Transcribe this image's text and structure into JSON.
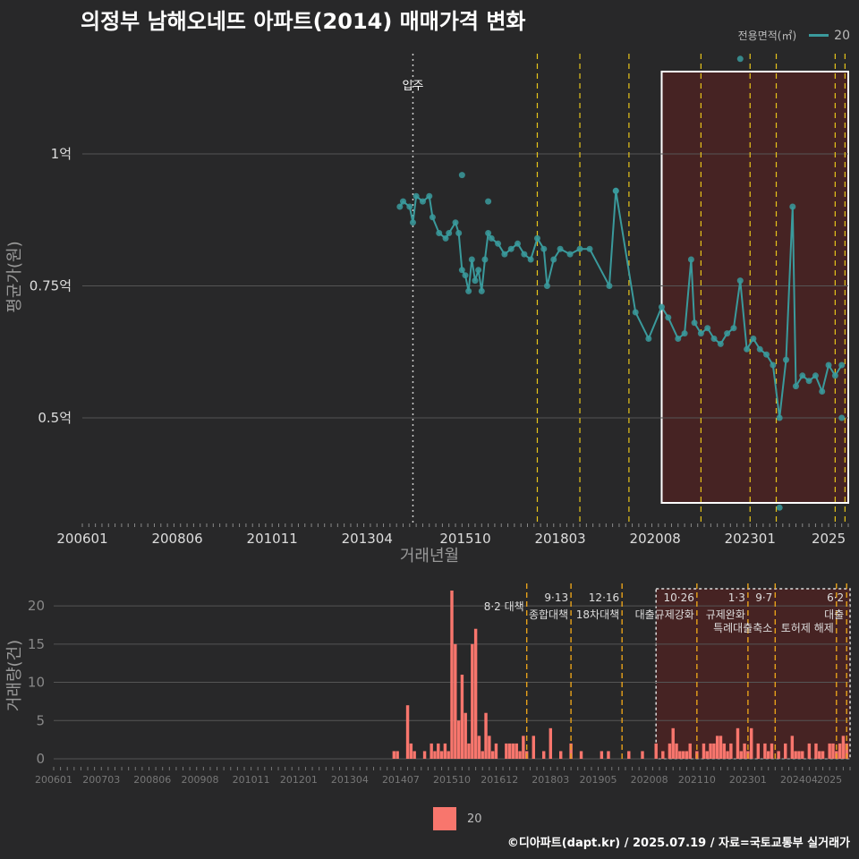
{
  "title": "의정부 남해오네뜨 아파트(2014) 매매가격 변화",
  "legend": {
    "title": "전용면적(㎡)",
    "series_label": "20",
    "bar_label": "20"
  },
  "footer": "©디아파트(dapt.kr) / 2025.07.19 / 자료=국토교통부 실거래가",
  "colors": {
    "bg": "#282829",
    "line": "#3a9a9c",
    "bar": "#f8766d",
    "grid": "#555555",
    "policy": "#e8c51a",
    "highlight": "#5a2020"
  },
  "chart_data": [
    {
      "type": "line+scatter",
      "title": "평균가(원)",
      "xlabel": "거래년월",
      "ylabel": "평균가(원)",
      "x_ticks": [
        "200601",
        "200806",
        "201011",
        "201304",
        "201510",
        "201803",
        "202008",
        "202301",
        "2025"
      ],
      "y_ticks": [
        {
          "value": 0.5,
          "label": "0.5억"
        },
        {
          "value": 0.75,
          "label": "0.75억"
        },
        {
          "value": 1.0,
          "label": "1억"
        }
      ],
      "ylim": [
        0.3,
        1.2
      ],
      "annotation": {
        "label": "입주",
        "date": "2014-06"
      },
      "policy_lines": [
        "2017-08",
        "2018-09",
        "2019-12",
        "2021-10",
        "2023-01",
        "2023-09",
        "2025-03",
        "2025-06"
      ],
      "highlight_range": [
        "2020-10",
        "2025-07"
      ],
      "series": [
        {
          "name": "20",
          "points": [
            [
              "2014-02",
              0.9
            ],
            [
              "2014-03",
              0.91
            ],
            [
              "2014-05",
              0.9
            ],
            [
              "2014-06",
              0.87
            ],
            [
              "2014-07",
              0.92
            ],
            [
              "2014-09",
              0.91
            ],
            [
              "2014-11",
              0.92
            ],
            [
              "2014-12",
              0.88
            ],
            [
              "2015-02",
              0.85
            ],
            [
              "2015-04",
              0.84
            ],
            [
              "2015-05",
              0.85
            ],
            [
              "2015-07",
              0.87
            ],
            [
              "2015-08",
              0.85
            ],
            [
              "2015-09",
              0.78
            ],
            [
              "2015-10",
              0.77
            ],
            [
              "2015-11",
              0.74
            ],
            [
              "2015-12",
              0.8
            ],
            [
              "2016-01",
              0.76
            ],
            [
              "2016-02",
              0.78
            ],
            [
              "2016-03",
              0.74
            ],
            [
              "2016-04",
              0.8
            ],
            [
              "2016-05",
              0.85
            ],
            [
              "2016-06",
              0.84
            ],
            [
              "2016-08",
              0.83
            ],
            [
              "2016-10",
              0.81
            ],
            [
              "2016-12",
              0.82
            ],
            [
              "2017-02",
              0.83
            ],
            [
              "2017-04",
              0.81
            ],
            [
              "2017-06",
              0.8
            ],
            [
              "2017-08",
              0.84
            ],
            [
              "2017-10",
              0.82
            ],
            [
              "2017-11",
              0.75
            ],
            [
              "2018-01",
              0.8
            ],
            [
              "2018-03",
              0.82
            ],
            [
              "2018-06",
              0.81
            ],
            [
              "2018-09",
              0.82
            ],
            [
              "2018-12",
              0.82
            ],
            [
              "2019-06",
              0.75
            ],
            [
              "2019-08",
              0.93
            ],
            [
              "2020-02",
              0.7
            ],
            [
              "2020-06",
              0.65
            ],
            [
              "2020-10",
              0.71
            ],
            [
              "2020-12",
              0.69
            ],
            [
              "2021-03",
              0.65
            ],
            [
              "2021-05",
              0.66
            ],
            [
              "2021-07",
              0.8
            ],
            [
              "2021-08",
              0.68
            ],
            [
              "2021-10",
              0.66
            ],
            [
              "2021-12",
              0.67
            ],
            [
              "2022-02",
              0.65
            ],
            [
              "2022-04",
              0.64
            ],
            [
              "2022-06",
              0.66
            ],
            [
              "2022-08",
              0.67
            ],
            [
              "2022-10",
              0.76
            ],
            [
              "2022-12",
              0.63
            ],
            [
              "2023-02",
              0.65
            ],
            [
              "2023-04",
              0.63
            ],
            [
              "2023-06",
              0.62
            ],
            [
              "2023-08",
              0.6
            ],
            [
              "2023-10",
              0.5
            ],
            [
              "2023-12",
              0.61
            ],
            [
              "2024-02",
              0.9
            ],
            [
              "2024-03",
              0.56
            ],
            [
              "2024-05",
              0.58
            ],
            [
              "2024-07",
              0.57
            ],
            [
              "2024-09",
              0.58
            ],
            [
              "2024-11",
              0.55
            ],
            [
              "2025-01",
              0.6
            ],
            [
              "2025-03",
              0.58
            ],
            [
              "2025-05",
              0.6
            ]
          ]
        },
        {
          "name": "outliers",
          "points": [
            [
              "2022-10",
              1.18
            ],
            [
              "2015-09",
              0.96
            ],
            [
              "2016-05",
              0.91
            ],
            [
              "2019-08",
              0.93
            ],
            [
              "2023-10",
              0.33
            ],
            [
              "2025-05",
              0.5
            ]
          ]
        }
      ]
    },
    {
      "type": "bar",
      "title": "거래량(건)",
      "ylabel": "거래량(건)",
      "x_ticks": [
        "200601",
        "200703",
        "200806",
        "200908",
        "201011",
        "201201",
        "201304",
        "201407",
        "201510",
        "201612",
        "201803",
        "201905",
        "202008",
        "202110",
        "202301",
        "202404",
        "2025"
      ],
      "y_ticks": [
        0,
        5,
        10,
        15,
        20
      ],
      "ylim": [
        0,
        22
      ],
      "highlight_range": [
        "2020-10",
        "2025-07"
      ],
      "policy_events": [
        {
          "date": "2017-08",
          "label_top": "8·2 대책",
          "label_bottom": ""
        },
        {
          "date": "2018-09",
          "label_top": "9·13",
          "label_bottom": "종합대책"
        },
        {
          "date": "2019-12",
          "label_top": "12·16",
          "label_bottom": "18차대책"
        },
        {
          "date": "2021-10",
          "label_top": "10·26",
          "label_bottom": "대출규제강화"
        },
        {
          "date": "2023-01",
          "label_top": "1·3",
          "label_bottom": "규제완화"
        },
        {
          "date": "2023-09",
          "label_top": "9·7",
          "label_bottom": "특례대출축소"
        },
        {
          "date": "2025-03",
          "label_top": "",
          "label_bottom": "토허제 해제"
        },
        {
          "date": "2025-06",
          "label_top": "6·2",
          "label_bottom": "대출"
        }
      ],
      "values": [
        [
          "2014-05",
          1
        ],
        [
          "2014-06",
          1
        ],
        [
          "2014-09",
          7
        ],
        [
          "2014-10",
          2
        ],
        [
          "2014-11",
          1
        ],
        [
          "2015-02",
          1
        ],
        [
          "2015-04",
          2
        ],
        [
          "2015-05",
          1
        ],
        [
          "2015-06",
          2
        ],
        [
          "2015-07",
          1
        ],
        [
          "2015-08",
          2
        ],
        [
          "2015-09",
          1
        ],
        [
          "2015-10",
          22
        ],
        [
          "2015-11",
          15
        ],
        [
          "2015-12",
          5
        ],
        [
          "2016-01",
          11
        ],
        [
          "2016-02",
          6
        ],
        [
          "2016-03",
          2
        ],
        [
          "2016-04",
          15
        ],
        [
          "2016-05",
          17
        ],
        [
          "2016-06",
          3
        ],
        [
          "2016-07",
          1
        ],
        [
          "2016-08",
          6
        ],
        [
          "2016-09",
          3
        ],
        [
          "2016-10",
          1
        ],
        [
          "2016-11",
          2
        ],
        [
          "2017-02",
          2
        ],
        [
          "2017-03",
          2
        ],
        [
          "2017-04",
          2
        ],
        [
          "2017-05",
          2
        ],
        [
          "2017-06",
          1
        ],
        [
          "2017-07",
          3
        ],
        [
          "2017-08",
          1
        ],
        [
          "2017-10",
          3
        ],
        [
          "2018-01",
          1
        ],
        [
          "2018-03",
          4
        ],
        [
          "2018-06",
          1
        ],
        [
          "2018-09",
          2
        ],
        [
          "2018-12",
          1
        ],
        [
          "2019-06",
          1
        ],
        [
          "2019-08",
          1
        ],
        [
          "2020-02",
          1
        ],
        [
          "2020-06",
          1
        ],
        [
          "2020-10",
          2
        ],
        [
          "2020-12",
          1
        ],
        [
          "2021-02",
          2
        ],
        [
          "2021-03",
          4
        ],
        [
          "2021-04",
          2
        ],
        [
          "2021-05",
          1
        ],
        [
          "2021-06",
          1
        ],
        [
          "2021-07",
          1
        ],
        [
          "2021-08",
          2
        ],
        [
          "2021-10",
          1
        ],
        [
          "2021-12",
          2
        ],
        [
          "2022-01",
          1
        ],
        [
          "2022-02",
          2
        ],
        [
          "2022-03",
          2
        ],
        [
          "2022-04",
          3
        ],
        [
          "2022-05",
          3
        ],
        [
          "2022-06",
          2
        ],
        [
          "2022-07",
          1
        ],
        [
          "2022-08",
          2
        ],
        [
          "2022-10",
          4
        ],
        [
          "2022-11",
          1
        ],
        [
          "2022-12",
          2
        ],
        [
          "2023-01",
          1
        ],
        [
          "2023-02",
          4
        ],
        [
          "2023-04",
          2
        ],
        [
          "2023-06",
          2
        ],
        [
          "2023-07",
          1
        ],
        [
          "2023-08",
          2
        ],
        [
          "2023-10",
          1
        ],
        [
          "2023-12",
          2
        ],
        [
          "2024-02",
          3
        ],
        [
          "2024-03",
          1
        ],
        [
          "2024-04",
          1
        ],
        [
          "2024-05",
          1
        ],
        [
          "2024-07",
          2
        ],
        [
          "2024-09",
          2
        ],
        [
          "2024-10",
          1
        ],
        [
          "2024-11",
          1
        ],
        [
          "2025-01",
          2
        ],
        [
          "2025-02",
          2
        ],
        [
          "2025-03",
          1
        ],
        [
          "2025-04",
          2
        ],
        [
          "2025-05",
          3
        ],
        [
          "2025-06",
          2
        ]
      ]
    }
  ]
}
